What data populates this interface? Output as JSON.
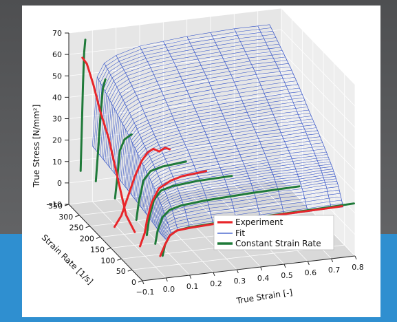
{
  "colors": {
    "background_top": "#4e4f51",
    "background_bottom": "#6a6b6d",
    "band_blue": "#2f8fd0",
    "panel": "#ffffff",
    "pane_fill": "#e6e6e6",
    "pane_fill_floor": "#d9d9d9",
    "grid": "#ffffff",
    "experiment": "#e8262a",
    "fit": "#2f4fc7",
    "constant_strain_rate": "#1f7a39"
  },
  "chart_data": {
    "type": "line",
    "projection": "3d",
    "title": "",
    "xlabel": "True Strain [-]",
    "ylabel": "Strain Rate [1/s]",
    "zlabel": "True Stress [N/mm²]",
    "xlim": [
      -0.1,
      0.8
    ],
    "ylim": [
      0,
      350
    ],
    "zlim": [
      -10,
      70
    ],
    "x_ticks": [
      "−0.1",
      "0.0",
      "0.1",
      "0.2",
      "0.3",
      "0.4",
      "0.5",
      "0.6",
      "0.7",
      "0.8"
    ],
    "y_ticks": [
      "0",
      "50",
      "100",
      "150",
      "200",
      "250",
      "300",
      "350"
    ],
    "z_ticks": [
      "−10",
      "0",
      "10",
      "20",
      "30",
      "40",
      "50",
      "60",
      "70"
    ],
    "grid": true,
    "legend_position": "lower right",
    "legend": [
      {
        "label": "Experiment",
        "color_key": "experiment"
      },
      {
        "label": "Fit",
        "color_key": "fit"
      },
      {
        "label": "Constant Strain Rate",
        "color_key": "constant_strain_rate"
      }
    ],
    "fit_surface": {
      "strain_rates": [
        0,
        25,
        50,
        80,
        120,
        160,
        200,
        250,
        300,
        350
      ],
      "strain": [
        0.0,
        0.02,
        0.05,
        0.1,
        0.2,
        0.3,
        0.4,
        0.5,
        0.6,
        0.7,
        0.75
      ],
      "stress_at_rate": [
        [
          8,
          11,
          11.5,
          12,
          12.5,
          12.5,
          12.8,
          13,
          13.2,
          13.5,
          13.5
        ],
        [
          8,
          16,
          18,
          19,
          20,
          20,
          20.5,
          21,
          21,
          21.5,
          21.5
        ],
        [
          9,
          20,
          22,
          23.5,
          24.5,
          25,
          25.5,
          26,
          26,
          26.5,
          26.5
        ],
        [
          10,
          24,
          26,
          28,
          29,
          29.5,
          30,
          30.5,
          31,
          31,
          31
        ],
        [
          11,
          28,
          31,
          33,
          34.5,
          35,
          35.5,
          36,
          36,
          36.5,
          36.5
        ],
        [
          12,
          32,
          35,
          37.5,
          39,
          40,
          40.5,
          41,
          41.5,
          41.5,
          41.5
        ],
        [
          13,
          36,
          40,
          42,
          44,
          45,
          45.5,
          46,
          46.5,
          47,
          47
        ],
        [
          14,
          40,
          45,
          48,
          50,
          51,
          52,
          52.5,
          53,
          53,
          53
        ],
        [
          15,
          44,
          50,
          53,
          55.5,
          56.5,
          57,
          57.5,
          58,
          58,
          58
        ],
        [
          16,
          48,
          54,
          57,
          60,
          61,
          62,
          62.5,
          63,
          63,
          63
        ]
      ]
    },
    "experiment_series": [
      {
        "x": [
          -0.02,
          0.0,
          0.02,
          0.05,
          0.1,
          0.2,
          0.3,
          0.4,
          0.5,
          0.6,
          0.7,
          0.75
        ],
        "y": [
          5,
          5,
          5,
          5,
          5,
          5,
          5,
          5,
          5,
          5,
          5,
          5
        ],
        "z": [
          0,
          5,
          9,
          11,
          11.5,
          12,
          12.3,
          12.6,
          12.8,
          13,
          13.2,
          13.4
        ]
      },
      {
        "x": [
          -0.03,
          -0.01,
          0.0,
          0.02,
          0.05,
          0.1,
          0.15,
          0.2,
          0.25
        ],
        "y": [
          90,
          90,
          90,
          90,
          90,
          90,
          90,
          90,
          90
        ],
        "z": [
          -4,
          2,
          8,
          16,
          22,
          25,
          26.5,
          27,
          27.5
        ]
      },
      {
        "x": [
          -0.04,
          -0.02,
          0.0,
          0.02,
          0.04,
          0.06,
          0.08,
          0.1,
          0.12,
          0.14
        ],
        "y": [
          200,
          190,
          180,
          170,
          160,
          155,
          150,
          145,
          140,
          140
        ],
        "z": [
          -6,
          0,
          10,
          20,
          28,
          32,
          34,
          33,
          35,
          34
        ]
      },
      {
        "x": [
          -0.06,
          -0.05,
          -0.04,
          -0.03,
          -0.02,
          -0.01,
          0.0,
          0.01
        ],
        "y": [
          330,
          320,
          300,
          280,
          250,
          220,
          190,
          160
        ],
        "z": [
          60,
          58,
          50,
          40,
          30,
          15,
          0,
          -5
        ]
      }
    ],
    "constant_strain_rate_series": [
      {
        "strain_rate": 5,
        "x": [
          -0.01,
          0.0,
          0.02,
          0.05,
          0.1,
          0.2,
          0.4,
          0.6,
          0.8
        ],
        "z": [
          0,
          5,
          9,
          11,
          11.8,
          12.3,
          12.8,
          13.3,
          14
        ]
      },
      {
        "strain_rate": 40,
        "x": [
          -0.01,
          0.0,
          0.02,
          0.05,
          0.1,
          0.2,
          0.4,
          0.6
        ],
        "z": [
          2,
          8,
          14,
          17,
          18.5,
          19.5,
          20.5,
          21
        ]
      },
      {
        "strain_rate": 80,
        "x": [
          -0.01,
          0.0,
          0.02,
          0.05,
          0.1,
          0.2,
          0.35
        ],
        "z": [
          2,
          10,
          18,
          22,
          23.5,
          24.5,
          25
        ]
      },
      {
        "strain_rate": 130,
        "x": [
          -0.01,
          0.0,
          0.02,
          0.05,
          0.1,
          0.2
        ],
        "z": [
          4,
          12,
          22,
          26,
          27.5,
          28.5
        ]
      },
      {
        "strain_rate": 220,
        "x": [
          -0.02,
          -0.01,
          0.0,
          0.02,
          0.05
        ],
        "z": [
          5,
          15,
          27,
          32,
          34
        ]
      },
      {
        "strain_rate": 300,
        "x": [
          -0.03,
          -0.02,
          -0.01,
          0.0,
          0.01
        ],
        "z": [
          5,
          20,
          36,
          48,
          52
        ]
      },
      {
        "strain_rate": 350,
        "x": [
          -0.05,
          -0.045,
          -0.04,
          -0.035,
          -0.03
        ],
        "z": [
          5,
          25,
          45,
          60,
          66
        ]
      }
    ]
  }
}
